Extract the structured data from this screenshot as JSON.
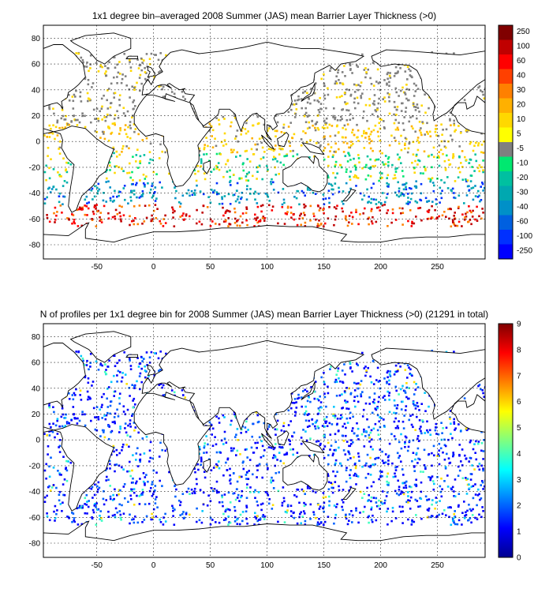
{
  "panels": [
    {
      "title": "1x1 degree bin–averaged 2008 Summer (JAS) mean Barrier Layer Thickness (>0)",
      "xticks": [
        -50,
        0,
        50,
        100,
        150,
        200,
        250
      ],
      "yticks": [
        -80,
        -60,
        -40,
        -20,
        0,
        20,
        40,
        60,
        80
      ],
      "colorbar": {
        "labels": [
          "250",
          "100",
          "60",
          "40",
          "30",
          "20",
          "10",
          "5",
          "-5",
          "-10",
          "-20",
          "-30",
          "-40",
          "-60",
          "-100",
          "-250"
        ],
        "colors": [
          "#800000",
          "#c00000",
          "#ff0000",
          "#ff4000",
          "#ff8000",
          "#ffb000",
          "#ffd800",
          "#ffff00",
          "#808080",
          "#00e870",
          "#00c0a0",
          "#00a8b0",
          "#0090c8",
          "#0060e0",
          "#0030ff",
          "#0000ff"
        ]
      }
    },
    {
      "title": "N of profiles per 1x1 degree bin for 2008 Summer (JAS) mean Barrier Layer Thickness (>0) (21291 in total)",
      "xticks": [
        -50,
        0,
        50,
        100,
        150,
        200,
        250
      ],
      "yticks": [
        -80,
        -60,
        -40,
        -20,
        0,
        20,
        40,
        60,
        80
      ],
      "colorbar": {
        "labels": [
          "9",
          "8",
          "7",
          "6",
          "5",
          "4",
          "3",
          "2",
          "1",
          "0"
        ]
      }
    }
  ]
}
